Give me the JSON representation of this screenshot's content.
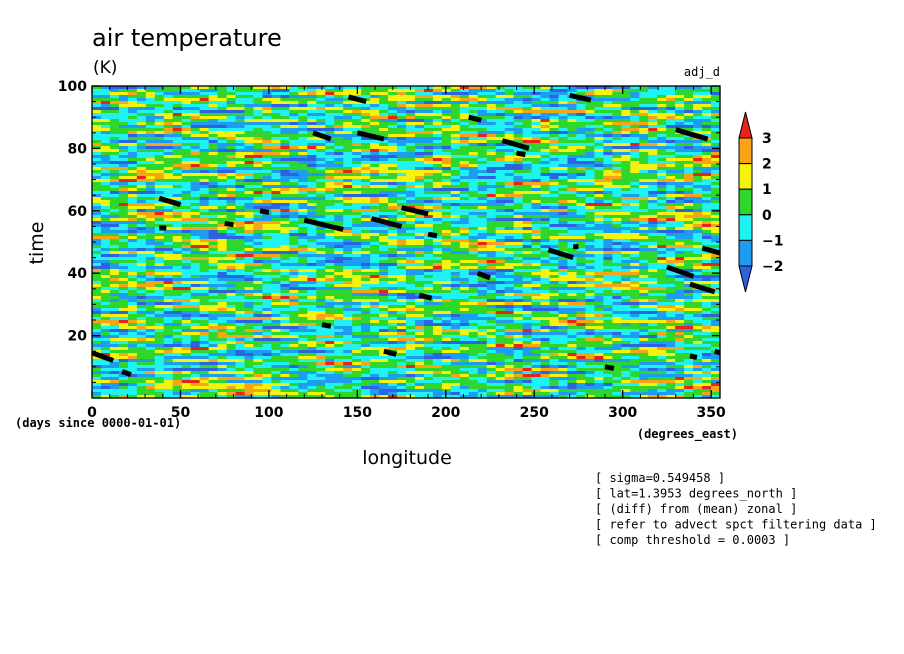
{
  "chart_data": {
    "type": "heatmap",
    "title": "air temperature",
    "units": "(K)",
    "right_label": "adj_d",
    "xlabel": "longitude",
    "ylabel": "time",
    "x_units": "(degrees_east)",
    "y_units": "(days since 0000-01-01)",
    "xlim": [
      0,
      355
    ],
    "ylim": [
      0,
      100
    ],
    "x_ticks": [
      0,
      50,
      100,
      150,
      200,
      250,
      300,
      350
    ],
    "y_ticks": [
      20,
      40,
      60,
      80,
      100
    ],
    "colorbar": {
      "levels": [
        3,
        2,
        1,
        0,
        -1,
        -2
      ],
      "colors": [
        "#e8231a",
        "#f7a516",
        "#f5f20e",
        "#2fd62c",
        "#1ef2f2",
        "#1d9cf0",
        "#2d62e0"
      ],
      "extend": "both"
    },
    "masked_segments": [
      [
        0,
        14.5,
        12,
        12
      ],
      [
        17,
        8.5,
        22,
        7.5
      ],
      [
        38,
        64,
        50,
        62
      ],
      [
        38,
        54.5,
        42,
        54.5
      ],
      [
        75,
        56,
        80,
        55.5
      ],
      [
        95,
        60,
        100,
        59.5
      ],
      [
        120,
        57,
        142,
        54
      ],
      [
        125,
        85,
        135,
        83
      ],
      [
        145,
        96.5,
        155,
        95
      ],
      [
        150,
        85,
        165,
        83
      ],
      [
        158,
        57.5,
        175,
        55
      ],
      [
        175,
        61,
        190,
        59
      ],
      [
        190,
        52.5,
        195,
        52
      ],
      [
        130,
        23.5,
        135,
        23
      ],
      [
        165,
        15,
        172,
        14
      ],
      [
        185,
        33,
        192,
        32
      ],
      [
        213,
        90,
        220,
        89
      ],
      [
        218,
        40,
        225,
        38.5
      ],
      [
        232,
        82.5,
        247,
        80
      ],
      [
        240,
        78.5,
        245,
        78
      ],
      [
        258,
        47.5,
        272,
        45
      ],
      [
        272,
        48.5,
        275,
        48.5
      ],
      [
        270,
        97,
        282,
        95.5
      ],
      [
        290,
        10,
        295,
        9.5
      ],
      [
        325,
        42,
        340,
        39
      ],
      [
        330,
        86,
        348,
        83
      ],
      [
        338,
        36.5,
        352,
        34
      ],
      [
        338,
        13.5,
        342,
        13
      ],
      [
        345,
        48,
        355,
        46.5
      ],
      [
        352,
        15,
        355,
        14.5
      ]
    ],
    "annotations": [
      "[ sigma=0.549458 ]",
      "[ lat=1.3953 degrees_north ]",
      "[ (diff) from (mean) zonal ]",
      "[ refer to advect spct filtering data ]",
      "[ comp threshold = 0.0003 ]"
    ]
  }
}
